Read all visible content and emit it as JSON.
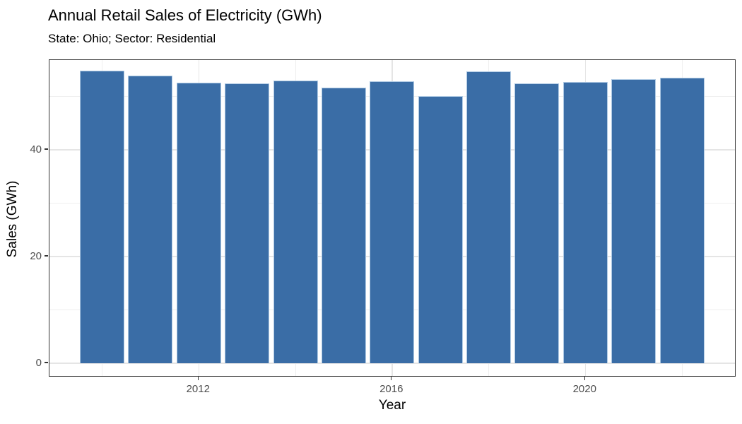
{
  "title": "Annual Retail Sales of Electricity (GWh)",
  "subtitle": "State: Ohio; Sector: Residential",
  "chart_data": {
    "type": "bar",
    "title": "Annual Retail Sales of Electricity (GWh)",
    "subtitle": "State: Ohio; Sector: Residential",
    "xlabel": "Year",
    "ylabel": "Sales (GWh)",
    "categories": [
      2010,
      2011,
      2012,
      2013,
      2014,
      2015,
      2016,
      2017,
      2018,
      2019,
      2020,
      2021,
      2022
    ],
    "values": [
      54.9,
      53.9,
      52.6,
      52.4,
      53.0,
      51.7,
      52.8,
      50.1,
      54.7,
      52.5,
      52.7,
      53.3,
      53.5
    ],
    "x_major_ticks": [
      2012,
      2016,
      2020
    ],
    "x_minor_gridlines": [
      2010,
      2014,
      2018,
      2022
    ],
    "y_major_ticks": [
      0,
      20,
      40
    ],
    "y_minor_gridlines": [
      10,
      30,
      50
    ],
    "ylim": [
      0,
      56.8
    ],
    "grid": true,
    "legend": false,
    "colors": {
      "bar_fill": "#3A6DA6",
      "bar_stroke": "#AEC9E3",
      "grid_major": "#E5E5E5",
      "grid_minor": "#EFEFEF",
      "panel_border": "#333333",
      "tick_mark": "#333333",
      "tick_label": "#4D4D4D",
      "text": "#000000",
      "background": "#FFFFFF"
    }
  }
}
